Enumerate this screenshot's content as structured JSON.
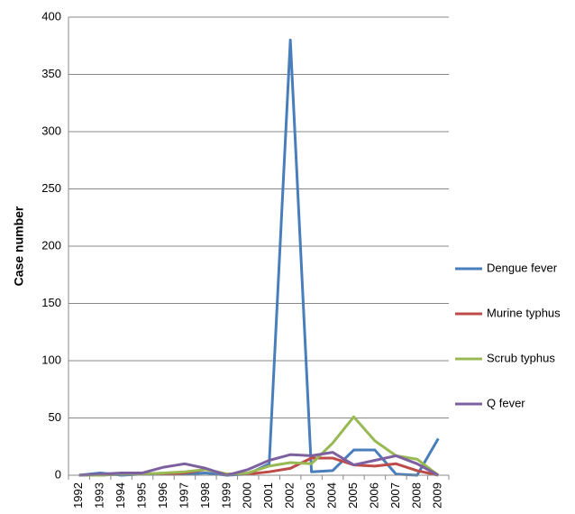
{
  "chart_data": {
    "type": "line",
    "y_label": "Case number",
    "categories": [
      "1992",
      "1993",
      "1994",
      "1995",
      "1996",
      "1997",
      "1998",
      "1999",
      "2000",
      "2001",
      "2002",
      "2003",
      "2004",
      "2005",
      "2006",
      "2007",
      "2008",
      "2009"
    ],
    "series": [
      {
        "name": "Dengue fever",
        "color": "#4a7ebb",
        "values": [
          0,
          2,
          0,
          1,
          1,
          1,
          2,
          0,
          1,
          10,
          380,
          3,
          4,
          22,
          22,
          1,
          0,
          32
        ]
      },
      {
        "name": "Murine typhus",
        "color": "#be4b48",
        "values": [
          0,
          0,
          1,
          1,
          1,
          2,
          5,
          1,
          1,
          3,
          6,
          15,
          15,
          9,
          8,
          10,
          4,
          0
        ]
      },
      {
        "name": "Scrub typhus",
        "color": "#98b954",
        "values": [
          0,
          0,
          1,
          1,
          2,
          3,
          5,
          1,
          2,
          8,
          11,
          10,
          28,
          51,
          30,
          17,
          14,
          0
        ]
      },
      {
        "name": "Q fever",
        "color": "#7d60a0",
        "values": [
          0,
          1,
          2,
          2,
          7,
          10,
          6,
          0,
          5,
          13,
          18,
          17,
          20,
          9,
          13,
          17,
          10,
          0
        ]
      }
    ],
    "ylim": [
      0,
      400
    ],
    "yticks": [
      0,
      50,
      100,
      150,
      200,
      250,
      300,
      350,
      400
    ],
    "grid": true,
    "legend": "right"
  }
}
